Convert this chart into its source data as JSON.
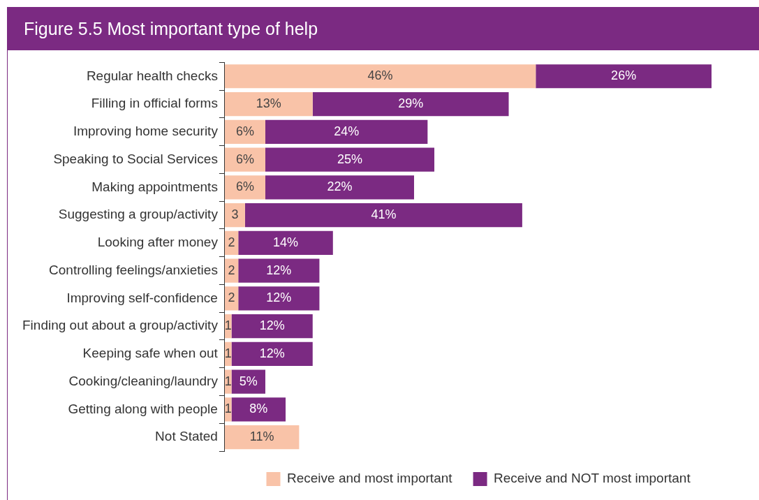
{
  "chart_data": {
    "type": "bar",
    "orientation": "horizontal",
    "stacked": true,
    "title": "Figure 5.5 Most important type of help",
    "categories": [
      "Regular health checks",
      "Filling in official forms",
      "Improving home security",
      "Speaking to Social Services",
      "Making appointments",
      "Suggesting a group/activity",
      "Looking after money",
      "Controlling feelings/anxieties",
      "Improving self-confidence",
      "Finding out about a group/activity",
      "Keeping safe when out",
      "Cooking/cleaning/laundry",
      "Getting along with people",
      "Not Stated"
    ],
    "series": [
      {
        "name": "Receive and most important",
        "color": "#f9c3a8",
        "values": [
          46,
          13,
          6,
          6,
          6,
          3,
          2,
          2,
          2,
          1,
          1,
          1,
          1,
          11
        ],
        "value_labels": [
          "46%",
          "13%",
          "6%",
          "6%",
          "6%",
          "3",
          "2",
          "2",
          "2",
          "1",
          "1",
          "1",
          "1",
          "11%"
        ]
      },
      {
        "name": "Receive and NOT most important",
        "color": "#7b2a82",
        "values": [
          26,
          29,
          24,
          25,
          22,
          41,
          14,
          12,
          12,
          12,
          12,
          5,
          8,
          null
        ],
        "value_labels": [
          "26%",
          "29%",
          "24%",
          "25%",
          "22%",
          "41%",
          "14%",
          "12%",
          "12%",
          "12%",
          "12%",
          "5%",
          "8%",
          null
        ]
      }
    ],
    "legend": "bottom right",
    "tick_labels": "y"
  }
}
